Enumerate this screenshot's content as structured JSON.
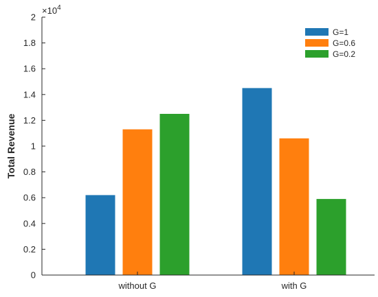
{
  "chart_data": {
    "type": "bar",
    "categories": [
      "without G",
      "with G"
    ],
    "series": [
      {
        "name": "G=1",
        "values": [
          6200,
          14500
        ],
        "color": "#1f77b4"
      },
      {
        "name": "G=0.6",
        "values": [
          11300,
          10600
        ],
        "color": "#ff7f0e"
      },
      {
        "name": "G=0.2",
        "values": [
          12500,
          5900
        ],
        "color": "#2ca02c"
      }
    ],
    "ylabel": "Total Revenue",
    "xlabel": "",
    "ylim": [
      0,
      20000
    ],
    "y_ticks": [
      0,
      2000,
      4000,
      6000,
      8000,
      10000,
      12000,
      14000,
      16000,
      18000,
      20000
    ],
    "y_tick_labels": [
      "0",
      "0.2",
      "0.4",
      "0.6",
      "0.8",
      "1",
      "1.2",
      "1.4",
      "1.6",
      "1.8",
      "2"
    ],
    "y_exponent_label": {
      "base": "×10",
      "power": "4"
    },
    "grid": false,
    "legend_position": "top-right"
  }
}
